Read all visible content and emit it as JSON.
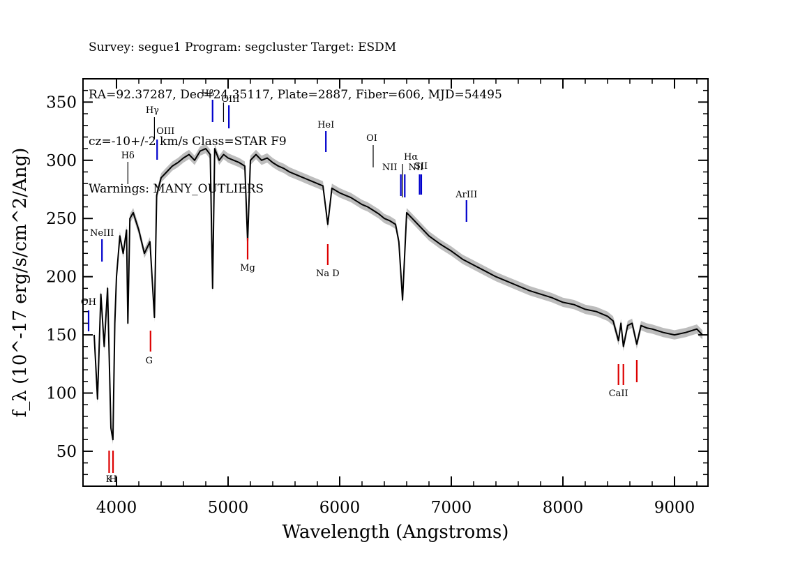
{
  "header": {
    "line1": "Survey: segue1 Program: segcluster Target: ESDM",
    "line2": "RA=92.37287, Dec=24.35117, Plate=2887, Fiber=606, MJD=54495",
    "line3": "cz=-10+/-2 km/s Class=STAR F9",
    "line4": "Warnings: MANY_OUTLIERS"
  },
  "chart_data": {
    "type": "line",
    "xlabel": "Wavelength (Angstroms)",
    "ylabel": "f_λ (10^-17 erg/s/cm^2/Ang)",
    "xlim": [
      3700,
      9300
    ],
    "ylim": [
      20,
      370
    ],
    "x_ticks": [
      4000,
      5000,
      6000,
      7000,
      8000,
      9000
    ],
    "y_ticks": [
      50,
      100,
      150,
      200,
      250,
      300,
      350
    ],
    "grid": false,
    "colors": {
      "flux": "#000000",
      "error_band": "#bdbdbd",
      "emission": "#0000cc",
      "absorption": "#dd0000",
      "neutral": "#000000"
    },
    "series": [
      {
        "x": [
          3800,
          3830,
          3860,
          3890,
          3920,
          3935,
          3950,
          3968,
          3985,
          4000,
          4030,
          4060,
          4090,
          4102,
          4120,
          4150,
          4200,
          4250,
          4300,
          4340,
          4360,
          4400,
          4450,
          4500,
          4550,
          4600,
          4650,
          4700,
          4750,
          4800,
          4840,
          4861,
          4880,
          4920,
          4960,
          5000,
          5050,
          5100,
          5150,
          5175,
          5200,
          5250,
          5300,
          5350,
          5400,
          5450,
          5500,
          5550,
          5600,
          5650,
          5700,
          5750,
          5800,
          5850,
          5893,
          5930,
          6000,
          6050,
          6100,
          6150,
          6200,
          6250,
          6300,
          6350,
          6400,
          6450,
          6500,
          6530,
          6563,
          6600,
          6650,
          6700,
          6750,
          6800,
          6900,
          7000,
          7100,
          7200,
          7300,
          7400,
          7500,
          7600,
          7700,
          7800,
          7900,
          8000,
          8100,
          8200,
          8300,
          8400,
          8450,
          8498,
          8520,
          8542,
          8580,
          8620,
          8662,
          8700,
          8750,
          8800,
          8900,
          9000,
          9100,
          9200,
          9250
        ],
        "y": [
          150,
          95,
          185,
          140,
          190,
          130,
          70,
          60,
          160,
          200,
          235,
          220,
          240,
          160,
          250,
          255,
          240,
          220,
          230,
          165,
          270,
          285,
          290,
          295,
          298,
          302,
          305,
          300,
          308,
          310,
          305,
          190,
          310,
          300,
          305,
          302,
          300,
          298,
          295,
          230,
          300,
          305,
          300,
          302,
          298,
          295,
          293,
          290,
          288,
          286,
          284,
          282,
          280,
          278,
          245,
          276,
          272,
          270,
          268,
          265,
          262,
          260,
          257,
          254,
          250,
          248,
          245,
          230,
          180,
          255,
          250,
          245,
          240,
          235,
          228,
          222,
          215,
          210,
          205,
          200,
          196,
          192,
          188,
          185,
          182,
          178,
          176,
          172,
          170,
          166,
          162,
          145,
          160,
          140,
          158,
          160,
          142,
          158,
          156,
          155,
          152,
          150,
          152,
          155,
          150
        ]
      }
    ],
    "line_markers": [
      {
        "label": "OH",
        "wavelength": 3750,
        "kind": "emission"
      },
      {
        "label": "NeIII",
        "wavelength": 3870,
        "kind": "emission"
      },
      {
        "label": "Hδ",
        "wavelength": 4102,
        "kind": "neutral"
      },
      {
        "label": "Hγ",
        "wavelength": 4340,
        "kind": "neutral"
      },
      {
        "label": "OIII",
        "wavelength": 4364,
        "kind": "emission"
      },
      {
        "label": "Hβ",
        "wavelength": 4861,
        "kind": "emission"
      },
      {
        "label": "OIII",
        "wavelength": 4959,
        "kind": "neutral"
      },
      {
        "label": "",
        "wavelength": 5007,
        "kind": "emission"
      },
      {
        "label": "HeI",
        "wavelength": 5876,
        "kind": "emission"
      },
      {
        "label": "OI",
        "wavelength": 6300,
        "kind": "neutral"
      },
      {
        "label": "NII",
        "wavelength": 6548,
        "kind": "emission"
      },
      {
        "label": "Hα",
        "wavelength": 6563,
        "kind": "neutral"
      },
      {
        "label": "NII",
        "wavelength": 6583,
        "kind": "emission"
      },
      {
        "label": "SII",
        "wavelength": 6716,
        "kind": "emission"
      },
      {
        "label": "",
        "wavelength": 6731,
        "kind": "emission"
      },
      {
        "label": "ArIII",
        "wavelength": 7136,
        "kind": "emission"
      },
      {
        "label": "K",
        "wavelength": 3934,
        "kind": "absorption"
      },
      {
        "label": "H",
        "wavelength": 3969,
        "kind": "absorption"
      },
      {
        "label": "G",
        "wavelength": 4305,
        "kind": "absorption"
      },
      {
        "label": "Mg",
        "wavelength": 5175,
        "kind": "absorption"
      },
      {
        "label": "Na D",
        "wavelength": 5893,
        "kind": "absorption"
      },
      {
        "label": "CaII",
        "wavelength": 8498,
        "kind": "absorption"
      },
      {
        "label": "",
        "wavelength": 8542,
        "kind": "absorption"
      },
      {
        "label": "",
        "wavelength": 8662,
        "kind": "absorption"
      }
    ]
  }
}
